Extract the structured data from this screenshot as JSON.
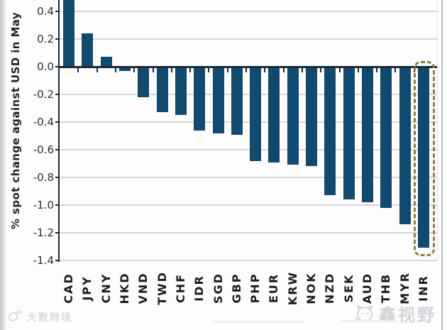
{
  "chart_data": {
    "type": "bar",
    "title": "",
    "xlabel": "",
    "ylabel": "% spot change against USD in May",
    "categories": [
      "CAD",
      "JPY",
      "CNY",
      "HKD",
      "VND",
      "TWD",
      "CHF",
      "IDR",
      "SGD",
      "GBP",
      "PHP",
      "EUR",
      "KRW",
      "NOK",
      "NZD",
      "SEK",
      "AUD",
      "THB",
      "MYR",
      "INR"
    ],
    "values": [
      0.48,
      0.24,
      0.07,
      -0.03,
      -0.22,
      -0.33,
      -0.35,
      -0.46,
      -0.48,
      -0.49,
      -0.68,
      -0.69,
      -0.71,
      -0.72,
      -0.93,
      -0.96,
      -0.98,
      -1.02,
      -1.14,
      -1.31
    ],
    "yticks": [
      0.4,
      0.2,
      0.0,
      -0.2,
      -0.4,
      -0.6,
      -0.8,
      -1.0,
      -1.2,
      -1.4
    ],
    "ylim": [
      -1.4,
      0.48
    ],
    "grid": "horizontal",
    "legend_position": "none",
    "bar_color": "#12496e",
    "axis_color": "#1d2b36",
    "gridline_color": "#d6d6d8",
    "tick_label_color": "#2d2d2f",
    "highlight": {
      "category": "INR",
      "style": "dashed-rounded-box",
      "color": "#8d7c49"
    }
  },
  "watermarks": {
    "bottom_left": "大数跨境",
    "bottom_right": "鑫视野"
  }
}
